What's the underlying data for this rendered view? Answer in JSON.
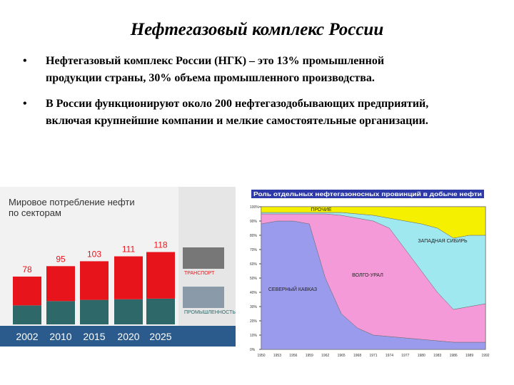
{
  "slide": {
    "title": "Нефтегазовый комплекс России",
    "bullets": [
      [
        "Нефтегазовый комплекс России (НГК) – это 13% промышленной",
        "продукции страны, 30% объема промышленного производства."
      ],
      [
        "В России функционируют около 200 нефтегазодобывающих предприятий,",
        "включая крупнейшие компании и мелкие самостоятельные организации."
      ]
    ]
  },
  "chart_data": [
    {
      "type": "bar",
      "stacked": true,
      "title": "Мировое потребление нефти по секторам",
      "categories": [
        "2002",
        "2010",
        "2015",
        "2020",
        "2025"
      ],
      "series": [
        {
          "name": "ПРОМЫШЛЕННОСТЬ",
          "color": "#2f6868",
          "values": [
            31,
            38,
            40,
            41,
            42
          ]
        },
        {
          "name": "ТРАНСПОРТ",
          "color": "#e8141b",
          "values": [
            47,
            57,
            63,
            70,
            76
          ]
        }
      ],
      "totals": [
        78,
        95,
        103,
        111,
        118
      ]
    },
    {
      "type": "area",
      "stacked": true,
      "title": "Роль отдельных нефтегазоносных провинций в добыче нефти",
      "x": [
        "1950",
        "1953",
        "1956",
        "1959",
        "1962",
        "1965",
        "1968",
        "1971",
        "1974",
        "1977",
        "1980",
        "1983",
        "1986",
        "1989",
        "1992"
      ],
      "ylim": [
        0,
        100
      ],
      "yticks": [
        {
          "value": 0,
          "label": "0%"
        },
        {
          "value": 10,
          "label": "10%"
        },
        {
          "value": 20,
          "label": "20%"
        },
        {
          "value": 30,
          "label": "30%"
        },
        {
          "value": 40,
          "label": "40%"
        },
        {
          "value": 50,
          "label": "50%"
        },
        {
          "value": 60,
          "label": "60%"
        },
        {
          "value": 70,
          "label": "70%"
        },
        {
          "value": 80,
          "label": "80%"
        },
        {
          "value": 90,
          "label": "90%"
        },
        {
          "value": 100,
          "label": "100%"
        }
      ],
      "series": [
        {
          "name": "СЕВЕРНЫЙ КАВКАЗ",
          "color": "#9b9bee",
          "values": [
            88,
            90,
            90,
            88,
            50,
            25,
            15,
            10,
            9,
            8,
            7,
            6,
            5,
            5,
            5
          ]
        },
        {
          "name": "ВОЛГО-УРАЛ",
          "color": "#f59ad8",
          "values": [
            7,
            5,
            5,
            7,
            45,
            69,
            77,
            80,
            76,
            62,
            48,
            34,
            23,
            25,
            27
          ]
        },
        {
          "name": "ЗАПАДНАЯ СИБИРЬ",
          "color": "#9fe8f0",
          "values": [
            1,
            1,
            1,
            1,
            1,
            2,
            3,
            4,
            7,
            20,
            33,
            45,
            50,
            50,
            48
          ]
        },
        {
          "name": "ПРОЧИЕ",
          "color": "#f5f000",
          "values": [
            4,
            4,
            4,
            4,
            4,
            4,
            5,
            6,
            8,
            10,
            12,
            15,
            22,
            20,
            20
          ]
        }
      ]
    }
  ]
}
